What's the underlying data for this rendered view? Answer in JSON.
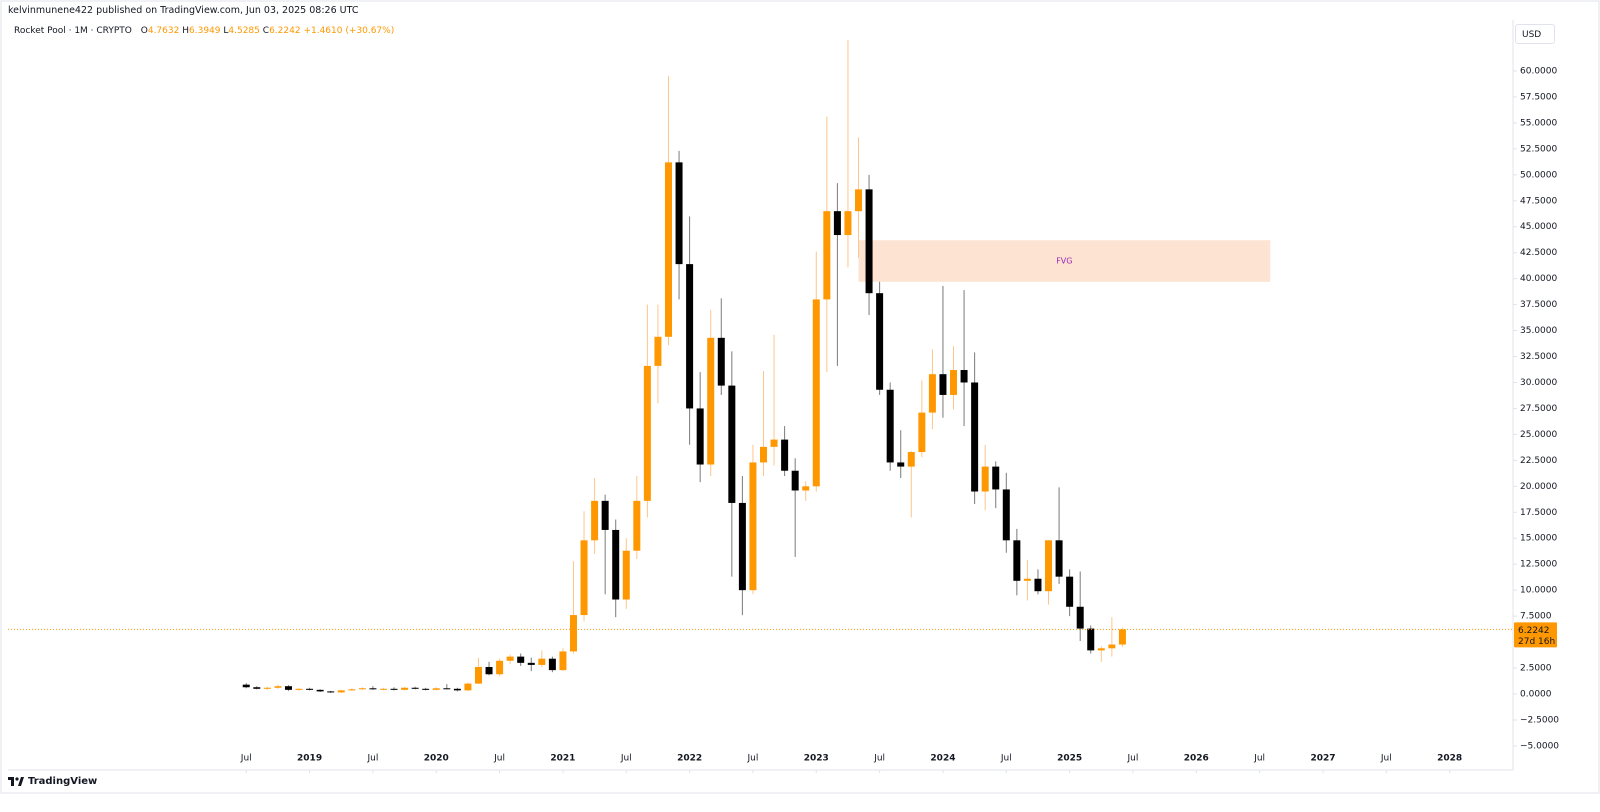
{
  "header": {
    "published": "kelvinmunene422 published on TradingView.com, Jun 03, 2025 08:26 UTC"
  },
  "footer": {
    "logo": "TradingView"
  },
  "chart_data": {
    "type": "candlestick",
    "title": "Rocket Pool · 1M · CRYPTO",
    "ohlc_letters": [
      "O",
      "H",
      "L",
      "C"
    ],
    "change_label": "+1.4610 (+30.67%)",
    "currency": "USD",
    "countdown": "27d 16h",
    "up_color": "#ff9800",
    "down_color": "#000000",
    "up_wick_color": "#ffc58a",
    "down_wick_color": "#7a7a7a",
    "last_price_color": "#ff9800",
    "grid": false,
    "x": [
      "2018-07",
      "2018-08",
      "2018-09",
      "2018-10",
      "2018-11",
      "2018-12",
      "2019-01",
      "2019-02",
      "2019-03",
      "2019-04",
      "2019-05",
      "2019-06",
      "2019-07",
      "2019-08",
      "2019-09",
      "2019-10",
      "2019-11",
      "2019-12",
      "2020-01",
      "2020-02",
      "2020-03",
      "2020-04",
      "2020-05",
      "2020-06",
      "2020-07",
      "2020-08",
      "2020-09",
      "2020-10",
      "2020-11",
      "2020-12",
      "2021-01",
      "2021-02",
      "2021-03",
      "2021-04",
      "2021-05",
      "2021-06",
      "2021-07",
      "2021-08",
      "2021-09",
      "2021-10",
      "2021-11",
      "2021-12",
      "2022-01",
      "2022-02",
      "2022-03",
      "2022-04",
      "2022-05",
      "2022-06",
      "2022-07",
      "2022-08",
      "2022-09",
      "2022-10",
      "2022-11",
      "2022-12",
      "2023-01",
      "2023-02",
      "2023-03",
      "2023-04",
      "2023-05",
      "2023-06",
      "2023-07",
      "2023-08",
      "2023-09",
      "2023-10",
      "2023-11",
      "2023-12",
      "2024-01",
      "2024-02",
      "2024-03",
      "2024-04",
      "2024-05",
      "2024-06",
      "2024-07",
      "2024-08",
      "2024-09",
      "2024-10",
      "2024-11",
      "2024-12",
      "2025-01",
      "2025-02",
      "2025-03",
      "2025-04",
      "2025-05",
      "2025-06"
    ],
    "open": [
      0.9,
      0.65,
      0.5,
      0.6,
      0.75,
      0.4,
      0.5,
      0.4,
      0.25,
      0.15,
      0.35,
      0.45,
      0.55,
      0.45,
      0.5,
      0.4,
      0.6,
      0.5,
      0.4,
      0.55,
      0.5,
      0.35,
      1.0,
      2.6,
      1.9,
      3.2,
      3.6,
      3.0,
      2.8,
      3.4,
      2.3,
      4.1,
      7.6,
      14.8,
      18.6,
      15.8,
      9.1,
      13.8,
      18.6,
      31.6,
      34.4,
      51.2,
      41.4,
      27.5,
      22.1,
      34.3,
      29.7,
      18.4,
      10.0,
      22.3,
      23.8,
      24.5,
      21.5,
      19.6,
      20.0,
      38.0,
      46.5,
      44.2,
      46.5,
      48.6,
      38.6,
      29.3,
      22.3,
      21.9,
      23.3,
      27.1,
      30.8,
      28.8,
      31.2,
      30.0,
      19.5,
      21.9,
      19.7,
      14.8,
      10.9,
      11.1,
      9.9,
      14.8,
      11.3,
      8.4,
      6.3,
      4.2,
      4.4,
      4.7632
    ],
    "high": [
      1.05,
      0.75,
      0.7,
      0.9,
      0.85,
      0.55,
      0.6,
      0.45,
      0.3,
      0.4,
      0.55,
      0.65,
      0.75,
      0.6,
      0.65,
      0.7,
      0.7,
      0.6,
      0.65,
      0.95,
      0.6,
      1.1,
      3.5,
      3.1,
      3.4,
      3.8,
      3.9,
      3.5,
      4.2,
      3.6,
      4.4,
      12.8,
      17.6,
      20.8,
      19.2,
      16.8,
      15.0,
      21.0,
      37.5,
      37.5,
      59.5,
      52.3,
      46.0,
      31.0,
      37.0,
      38.1,
      33.0,
      21.0,
      24.0,
      31.1,
      34.6,
      25.8,
      22.7,
      20.5,
      42.6,
      55.6,
      49.2,
      63.0,
      53.6,
      50.0,
      39.7,
      30.0,
      25.4,
      23.4,
      30.2,
      33.2,
      39.3,
      33.5,
      38.9,
      32.9,
      24.0,
      22.4,
      21.3,
      15.9,
      12.9,
      12.0,
      14.8,
      19.9,
      12.0,
      11.8,
      6.6,
      4.6,
      7.4,
      6.3949
    ],
    "low": [
      0.55,
      0.45,
      0.4,
      0.5,
      0.3,
      0.3,
      0.35,
      0.2,
      0.1,
      0.1,
      0.3,
      0.4,
      0.4,
      0.35,
      0.35,
      0.35,
      0.45,
      0.35,
      0.35,
      0.45,
      0.25,
      0.3,
      0.95,
      1.8,
      1.7,
      2.9,
      2.7,
      2.2,
      2.6,
      2.1,
      2.2,
      3.9,
      7.0,
      13.5,
      9.6,
      7.4,
      8.2,
      13.0,
      17.0,
      28.0,
      33.6,
      38.0,
      24.0,
      20.4,
      21.0,
      28.8,
      11.3,
      7.6,
      9.6,
      21.0,
      22.0,
      21.0,
      13.2,
      18.6,
      19.5,
      31.0,
      31.6,
      41.1,
      42.0,
      36.5,
      28.8,
      21.5,
      20.8,
      17.0,
      22.8,
      25.5,
      26.6,
      27.4,
      25.8,
      18.3,
      17.7,
      17.9,
      13.6,
      9.5,
      9.0,
      9.6,
      8.6,
      10.6,
      7.5,
      5.1,
      3.9,
      3.1,
      3.6,
      4.5285
    ],
    "close": [
      0.65,
      0.5,
      0.6,
      0.75,
      0.4,
      0.5,
      0.4,
      0.25,
      0.15,
      0.35,
      0.45,
      0.55,
      0.45,
      0.5,
      0.4,
      0.6,
      0.5,
      0.4,
      0.55,
      0.5,
      0.35,
      1.0,
      2.6,
      1.9,
      3.2,
      3.6,
      3.0,
      2.8,
      3.4,
      2.3,
      4.1,
      7.6,
      14.8,
      18.6,
      15.8,
      9.1,
      13.8,
      18.6,
      31.6,
      34.4,
      51.2,
      41.4,
      27.5,
      22.1,
      34.3,
      29.7,
      18.4,
      10.0,
      22.3,
      23.8,
      24.5,
      21.5,
      19.6,
      20.0,
      38.0,
      46.5,
      44.2,
      46.5,
      48.6,
      38.6,
      29.3,
      22.3,
      21.9,
      23.3,
      27.1,
      30.8,
      28.8,
      31.2,
      30.0,
      19.5,
      21.9,
      19.7,
      14.8,
      10.9,
      11.1,
      9.9,
      14.8,
      11.3,
      8.4,
      6.3,
      4.2,
      4.4,
      4.7632,
      6.2242
    ],
    "xlim": [
      "2016-09",
      "2028-07"
    ],
    "xticks": [
      {
        "value": "2018-07",
        "label": "Jul"
      },
      {
        "value": "2019-01",
        "label": "2019"
      },
      {
        "value": "2019-07",
        "label": "Jul"
      },
      {
        "value": "2020-01",
        "label": "2020"
      },
      {
        "value": "2020-07",
        "label": "Jul"
      },
      {
        "value": "2021-01",
        "label": "2021"
      },
      {
        "value": "2021-07",
        "label": "Jul"
      },
      {
        "value": "2022-01",
        "label": "2022"
      },
      {
        "value": "2022-07",
        "label": "Jul"
      },
      {
        "value": "2023-01",
        "label": "2023"
      },
      {
        "value": "2023-07",
        "label": "Jul"
      },
      {
        "value": "2024-01",
        "label": "2024"
      },
      {
        "value": "2024-07",
        "label": "Jul"
      },
      {
        "value": "2025-01",
        "label": "2025"
      },
      {
        "value": "2025-07",
        "label": "Jul"
      },
      {
        "value": "2026-01",
        "label": "2026"
      },
      {
        "value": "2026-07",
        "label": "Jul"
      },
      {
        "value": "2027-01",
        "label": "2027"
      },
      {
        "value": "2027-07",
        "label": "Jul"
      },
      {
        "value": "2028-01",
        "label": "2028"
      }
    ],
    "ylim": [
      -7.32,
      64.91
    ],
    "yticks": [
      {
        "value": -5,
        "label": "−5.0000"
      },
      {
        "value": -2.5,
        "label": "−2.5000"
      },
      {
        "value": 0,
        "label": "0.0000"
      },
      {
        "value": 2.5,
        "label": "2.5000"
      },
      {
        "value": 5,
        "label": "5.0000"
      },
      {
        "value": 7.5,
        "label": "7.5000"
      },
      {
        "value": 10,
        "label": "10.0000"
      },
      {
        "value": 12.5,
        "label": "12.5000"
      },
      {
        "value": 15,
        "label": "15.0000"
      },
      {
        "value": 17.5,
        "label": "17.5000"
      },
      {
        "value": 20,
        "label": "20.0000"
      },
      {
        "value": 22.5,
        "label": "22.5000"
      },
      {
        "value": 25,
        "label": "25.0000"
      },
      {
        "value": 27.5,
        "label": "27.5000"
      },
      {
        "value": 30,
        "label": "30.0000"
      },
      {
        "value": 32.5,
        "label": "32.5000"
      },
      {
        "value": 35,
        "label": "35.0000"
      },
      {
        "value": 37.5,
        "label": "37.5000"
      },
      {
        "value": 40,
        "label": "40.0000"
      },
      {
        "value": 42.5,
        "label": "42.5000"
      },
      {
        "value": 45,
        "label": "45.0000"
      },
      {
        "value": 47.5,
        "label": "47.5000"
      },
      {
        "value": 50,
        "label": "50.0000"
      },
      {
        "value": 52.5,
        "label": "52.5000"
      },
      {
        "value": 55,
        "label": "55.0000"
      },
      {
        "value": 57.5,
        "label": "57.5000"
      },
      {
        "value": 60,
        "label": "60.0000"
      }
    ],
    "annotations": [
      {
        "label": "FVG",
        "x0": "2023-05",
        "x1": "2026-08",
        "top": 43.7,
        "bottom": 39.7,
        "color": "#fde3d2",
        "text_color": "#9c27b0"
      }
    ]
  }
}
